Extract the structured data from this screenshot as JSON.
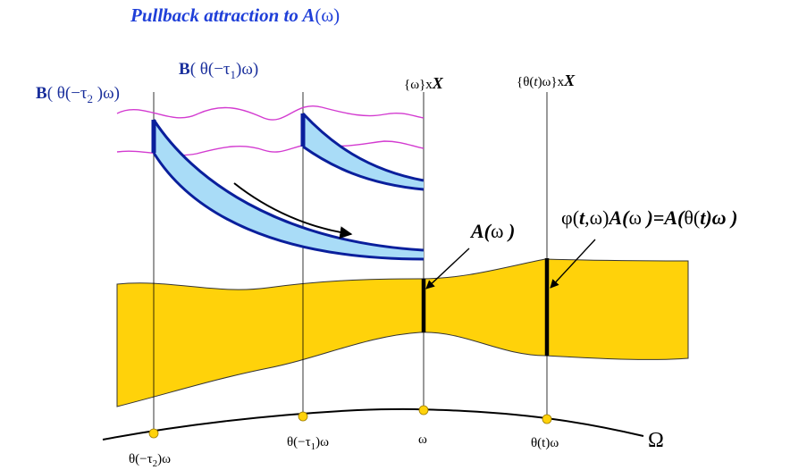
{
  "title": {
    "prefix": "Pullback attraction to ",
    "A": "A",
    "paren_open": "(",
    "omega": "ω",
    "paren_close": ")"
  },
  "labels": {
    "b_tau2": {
      "B": "B",
      "pre": "( θ(−τ",
      "sub": "2",
      "post": " )ω)"
    },
    "b_tau1": {
      "B": "B",
      "pre": "( θ(−τ",
      "sub": "1",
      "post": ")ω)"
    },
    "fiber_omega": {
      "pre": "{ω}x",
      "X": "X"
    },
    "fiber_theta_t": {
      "pre": "{θ(",
      "t": "t",
      "post": ")ω}x",
      "X": "X"
    },
    "a_omega": {
      "A": "A(",
      "omega": "ω",
      "close": " )"
    },
    "cocycle": {
      "phi": "φ(",
      "t": "t",
      "mid": ",ω)",
      "A1": "A(",
      "omega1": "ω",
      "eq": " )=",
      "A2": "A(",
      "theta": "θ(",
      "t2": "t",
      "end": ")ω )"
    },
    "base_points": [
      {
        "pre": "θ(−τ",
        "sub": "2",
        "post": ")ω"
      },
      {
        "pre": "θ(−τ",
        "sub": "1",
        "post": ")ω"
      },
      {
        "pre": "",
        "sub": "",
        "post": "ω"
      },
      {
        "pre": "θ(t",
        "sub": "",
        "post": ")ω"
      }
    ],
    "Omega": "Ω"
  },
  "colors": {
    "title": "#1f3fd8",
    "label_blue": "#1a2f9c",
    "wave": "#d33bd0",
    "band_fill": "#ffd20a",
    "band_stroke": "#333333",
    "tube_fill": "#a9dcf7",
    "tube_stroke": "#0a1f9c",
    "point": "#ffd20a"
  }
}
